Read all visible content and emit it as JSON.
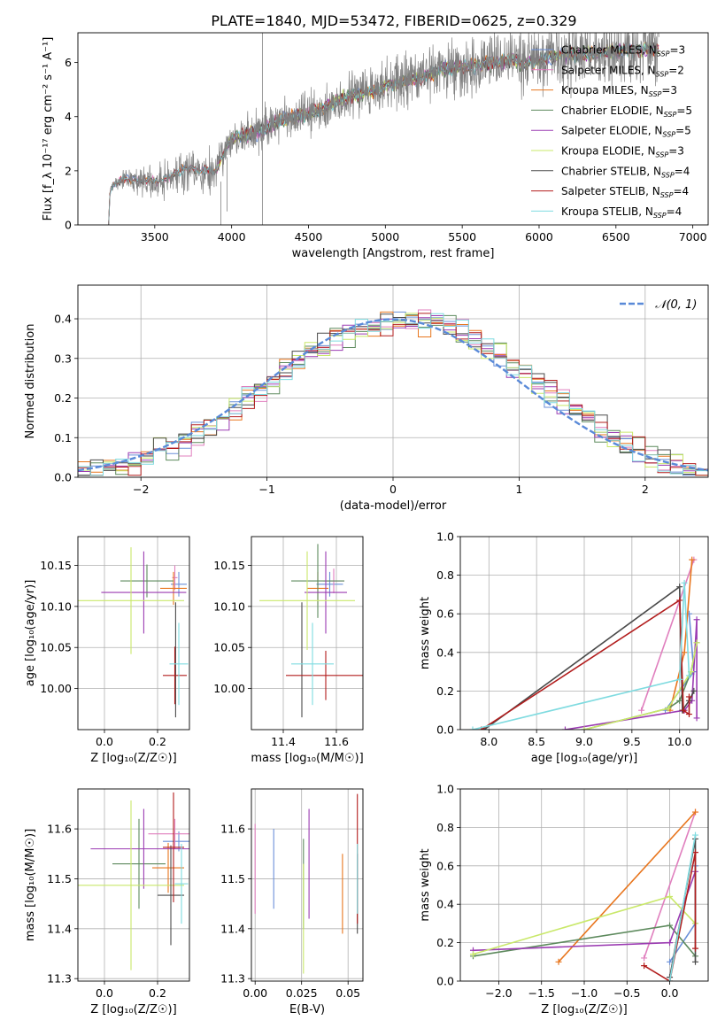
{
  "title": "PLATE=1840, MJD=53472, FIBERID=0625, z=0.329",
  "colors": {
    "Chabrier MILES": "#6a8fd8",
    "Salpeter MILES": "#e07fbe",
    "Kroupa MILES": "#e8761e",
    "Chabrier ELODIE": "#5d8a5d",
    "Salpeter ELODIE": "#9b3bb2",
    "Kroupa ELODIE": "#c9e86a",
    "Chabrier STELIB": "#4a4a4a",
    "Salpeter STELIB": "#b21d1d",
    "Kroupa STELIB": "#7fdbe0",
    "data": "#808080",
    "normal": "#5a8ad8"
  },
  "chart_data": [
    {
      "id": "spectrum",
      "type": "line",
      "xlabel": "wavelength [Angstrom, rest frame]",
      "ylabel": "Flux [f_λ 10⁻¹⁷ erg cm⁻² s⁻¹ A⁻¹]",
      "xlim": [
        3000,
        7100
      ],
      "ylim": [
        0,
        7.1
      ],
      "xticks": [
        3500,
        4000,
        4500,
        5000,
        5500,
        6000,
        6500,
        7000
      ],
      "yticks": [
        0,
        2,
        4,
        6
      ],
      "legend_position": "right",
      "legend": [
        {
          "base": "Chabrier MILES, N",
          "sub": "SSP",
          "tail": "=3"
        },
        {
          "base": "Salpeter MILES, N",
          "sub": "SSP",
          "tail": "=2"
        },
        {
          "base": "Kroupa MILES, N",
          "sub": "SSP",
          "tail": "=3"
        },
        {
          "base": "Chabrier ELODIE, N",
          "sub": "SSP",
          "tail": "=5"
        },
        {
          "base": "Salpeter ELODIE, N",
          "sub": "SSP",
          "tail": "=5"
        },
        {
          "base": "Kroupa ELODIE, N",
          "sub": "SSP",
          "tail": "=3"
        },
        {
          "base": "Chabrier STELIB, N",
          "sub": "SSP",
          "tail": "=4"
        },
        {
          "base": "Salpeter STELIB, N",
          "sub": "SSP",
          "tail": "=4"
        },
        {
          "base": "Kroupa STELIB, N",
          "sub": "SSP",
          "tail": "=4"
        }
      ],
      "continuum": [
        [
          3200,
          0
        ],
        [
          3210,
          1.4
        ],
        [
          3300,
          1.7
        ],
        [
          3400,
          1.65
        ],
        [
          3500,
          1.6
        ],
        [
          3600,
          1.8
        ],
        [
          3700,
          2.1
        ],
        [
          3800,
          2.0
        ],
        [
          3900,
          2.0
        ],
        [
          3950,
          2.7
        ],
        [
          4000,
          3.2
        ],
        [
          4100,
          3.3
        ],
        [
          4200,
          3.5
        ],
        [
          4300,
          3.8
        ],
        [
          4400,
          4.0
        ],
        [
          4500,
          4.1
        ],
        [
          4600,
          4.3
        ],
        [
          4700,
          4.6
        ],
        [
          4800,
          4.8
        ],
        [
          4900,
          4.9
        ],
        [
          5000,
          5.1
        ],
        [
          5100,
          5.3
        ],
        [
          5200,
          5.4
        ],
        [
          5300,
          5.6
        ],
        [
          5400,
          5.8
        ],
        [
          5500,
          5.8
        ],
        [
          5600,
          5.9
        ],
        [
          5700,
          6.0
        ],
        [
          5800,
          6.1
        ],
        [
          5900,
          6.0
        ],
        [
          6000,
          6.1
        ],
        [
          6100,
          6.2
        ],
        [
          6200,
          6.3
        ],
        [
          6300,
          6.3
        ],
        [
          6400,
          6.4
        ],
        [
          6500,
          6.4
        ],
        [
          6600,
          6.5
        ],
        [
          6700,
          6.5
        ],
        [
          6780,
          6.5
        ]
      ],
      "noise_scale": [
        [
          3200,
          0.2
        ],
        [
          3500,
          0.9
        ],
        [
          3700,
          1.0
        ],
        [
          4000,
          0.9
        ],
        [
          4500,
          1.0
        ],
        [
          5000,
          1.2
        ],
        [
          5500,
          1.4
        ],
        [
          6000,
          1.5
        ],
        [
          6500,
          1.6
        ],
        [
          6780,
          1.6
        ]
      ],
      "model_ranges": {
        "Chabrier MILES": [
          3200,
          6780
        ],
        "Salpeter MILES": [
          3200,
          6780
        ],
        "Kroupa MILES": [
          3200,
          6780
        ],
        "Chabrier ELODIE": [
          3900,
          6780
        ],
        "Salpeter ELODIE": [
          3900,
          6780
        ],
        "Kroupa ELODIE": [
          3900,
          6780
        ],
        "Chabrier STELIB": [
          3200,
          6780
        ],
        "Salpeter STELIB": [
          3200,
          6780
        ],
        "Kroupa STELIB": [
          3200,
          6780
        ]
      },
      "data_spikes": [
        [
          4200,
          0,
          7.1
        ],
        [
          3930,
          0,
          1.6
        ],
        [
          3970,
          0.5,
          2.5
        ]
      ]
    },
    {
      "id": "residual-histogram",
      "type": "histogram",
      "xlabel": "(data-model)/error",
      "ylabel": "Normed distribution",
      "xlim": [
        -2.5,
        2.5
      ],
      "ylim": [
        0,
        0.485
      ],
      "xticks": [
        -2,
        -1,
        0,
        1,
        2
      ],
      "yticks": [
        0.0,
        0.1,
        0.2,
        0.3,
        0.4
      ],
      "bin_width": 0.1,
      "legend_label": "𝒩(0, 1)",
      "legend_position": "top-right",
      "normal": {
        "mu": 0,
        "sigma": 1
      }
    },
    {
      "id": "age-vs-Z",
      "type": "errorbar",
      "xlabel": "Z [log₁₀(Z/Z☉)]",
      "ylabel": "age  [log₁₀(age/yr)]",
      "xlim": [
        -0.1,
        0.32
      ],
      "ylim": [
        9.95,
        10.185
      ],
      "xticks": [
        0.0,
        0.2
      ],
      "yticks": [
        10.0,
        10.05,
        10.1,
        10.15
      ],
      "points": [
        {
          "model": "Chabrier MILES",
          "x": 0.28,
          "xerr": 0.03,
          "y": 10.127,
          "yerr": 0.015
        },
        {
          "model": "Salpeter MILES",
          "x": 0.265,
          "xerr": 0.01,
          "y": 10.135,
          "yerr": 0.015
        },
        {
          "model": "Kroupa MILES",
          "x": 0.26,
          "xerr": 0.05,
          "y": 10.122,
          "yerr": 0.02
        },
        {
          "model": "Chabrier ELODIE",
          "x": 0.16,
          "xerr": 0.1,
          "y": 10.131,
          "yerr": 0.02
        },
        {
          "model": "Salpeter ELODIE",
          "x": 0.148,
          "xerr": 0.16,
          "y": 10.117,
          "yerr": 0.05
        },
        {
          "model": "Kroupa ELODIE",
          "x": 0.1,
          "xerr": 0.2,
          "y": 10.107,
          "yerr": 0.065
        },
        {
          "model": "Chabrier STELIB",
          "x": 0.268,
          "xerr": 0.0,
          "y": 10.035,
          "yerr": 0.07
        },
        {
          "model": "Salpeter STELIB",
          "x": 0.265,
          "xerr": 0.045,
          "y": 10.016,
          "yerr": 0.035
        },
        {
          "model": "Kroupa STELIB",
          "x": 0.28,
          "xerr": 0.035,
          "y": 10.03,
          "yerr": 0.05
        }
      ]
    },
    {
      "id": "age-vs-mass",
      "type": "errorbar",
      "xlabel": "mass [log₁₀(M/M☉)]",
      "ylabel": "",
      "xlim": [
        11.28,
        11.7
      ],
      "ylim": [
        9.95,
        10.185
      ],
      "xticks": [
        11.4,
        11.6
      ],
      "yticks": [
        10.0,
        10.05,
        10.1,
        10.15
      ],
      "points": [
        {
          "model": "Chabrier MILES",
          "x": 11.575,
          "xerr": 0.05,
          "y": 10.127,
          "yerr": 0.015
        },
        {
          "model": "Salpeter MILES",
          "x": 11.59,
          "xerr": 0.04,
          "y": 10.131,
          "yerr": 0.015
        },
        {
          "model": "Kroupa MILES",
          "x": 11.53,
          "xerr": 0.04,
          "y": 10.122,
          "yerr": 0.02
        },
        {
          "model": "Chabrier ELODIE",
          "x": 11.53,
          "xerr": 0.1,
          "y": 10.131,
          "yerr": 0.045
        },
        {
          "model": "Salpeter ELODIE",
          "x": 11.56,
          "xerr": 0.08,
          "y": 10.117,
          "yerr": 0.05
        },
        {
          "model": "Kroupa ELODIE",
          "x": 11.49,
          "xerr": 0.18,
          "y": 10.107,
          "yerr": 0.06
        },
        {
          "model": "Chabrier STELIB",
          "x": 11.47,
          "xerr": 0.0,
          "y": 10.035,
          "yerr": 0.07
        },
        {
          "model": "Salpeter STELIB",
          "x": 11.56,
          "xerr": 0.15,
          "y": 10.016,
          "yerr": 0.03
        },
        {
          "model": "Kroupa STELIB",
          "x": 11.51,
          "xerr": 0.08,
          "y": 10.03,
          "yerr": 0.05
        }
      ]
    },
    {
      "id": "mass-weight-vs-age",
      "type": "line",
      "xlabel": "age  [log₁₀(age/yr)]",
      "ylabel": "mass weight",
      "xlim": [
        7.7,
        10.3
      ],
      "ylim": [
        0,
        1.0
      ],
      "xticks": [
        8.0,
        8.5,
        9.0,
        9.5,
        10.0
      ],
      "yticks": [
        0.0,
        0.2,
        0.4,
        0.6,
        0.8,
        1.0
      ],
      "series": [
        {
          "model": "Chabrier MILES",
          "points": [
            [
              9.85,
              0.1
            ],
            [
              10.15,
              0.3
            ],
            [
              10.1,
              0.6
            ]
          ]
        },
        {
          "model": "Salpeter MILES",
          "points": [
            [
              9.6,
              0.1
            ],
            [
              10.15,
              0.88
            ]
          ]
        },
        {
          "model": "Kroupa MILES",
          "points": [
            [
              9.9,
              0.1
            ],
            [
              10.05,
              0.4
            ],
            [
              10.13,
              0.88
            ]
          ]
        },
        {
          "model": "Chabrier ELODIE",
          "points": [
            [
              9.0,
              0.0
            ],
            [
              9.88,
              0.11
            ],
            [
              10.0,
              0.15
            ],
            [
              10.12,
              0.3
            ],
            [
              10.18,
              0.45
            ]
          ]
        },
        {
          "model": "Salpeter ELODIE",
          "points": [
            [
              8.8,
              0.0
            ],
            [
              10.05,
              0.1
            ],
            [
              10.13,
              0.15
            ],
            [
              10.18,
              0.57
            ],
            [
              10.18,
              0.06
            ]
          ]
        },
        {
          "model": "Kroupa ELODIE",
          "points": [
            [
              9.0,
              0.0
            ],
            [
              9.88,
              0.11
            ],
            [
              10.12,
              0.3
            ],
            [
              10.18,
              0.45
            ]
          ]
        },
        {
          "model": "Chabrier STELIB",
          "points": [
            [
              7.95,
              0.0
            ],
            [
              10.0,
              0.74
            ],
            [
              10.03,
              0.1
            ],
            [
              10.1,
              0.15
            ],
            [
              10.15,
              0.2
            ]
          ]
        },
        {
          "model": "Salpeter STELIB",
          "points": [
            [
              7.92,
              0.0
            ],
            [
              10.0,
              0.67
            ],
            [
              10.04,
              0.1
            ],
            [
              10.1,
              0.08
            ],
            [
              10.1,
              0.17
            ]
          ]
        },
        {
          "model": "Kroupa STELIB",
          "points": [
            [
              7.83,
              0.0
            ],
            [
              10.0,
              0.26
            ],
            [
              10.05,
              0.76
            ],
            [
              10.1,
              0.28
            ]
          ]
        }
      ]
    },
    {
      "id": "mass-vs-Z",
      "type": "errorbar",
      "xlabel": "Z [log₁₀(Z/Z☉)]",
      "ylabel": "mass [log₁₀(M/M☉)]",
      "xlim": [
        -0.1,
        0.32
      ],
      "ylim": [
        11.295,
        11.68
      ],
      "xticks": [
        0.0,
        0.2
      ],
      "yticks": [
        11.3,
        11.4,
        11.5,
        11.6
      ],
      "points": [
        {
          "model": "Chabrier MILES",
          "x": 0.28,
          "xerr": 0.06,
          "y": 11.575,
          "yerr": 0.02
        },
        {
          "model": "Salpeter MILES",
          "x": 0.265,
          "xerr": 0.1,
          "y": 11.59,
          "yerr": 0.03
        },
        {
          "model": "Kroupa MILES",
          "x": 0.24,
          "xerr": 0.06,
          "y": 11.522,
          "yerr": 0.05
        },
        {
          "model": "Chabrier ELODIE",
          "x": 0.13,
          "xerr": 0.1,
          "y": 11.53,
          "yerr": 0.09
        },
        {
          "model": "Salpeter ELODIE",
          "x": 0.148,
          "xerr": 0.2,
          "y": 11.56,
          "yerr": 0.08
        },
        {
          "model": "Kroupa ELODIE",
          "x": 0.1,
          "xerr": 0.2,
          "y": 11.487,
          "yerr": 0.17
        },
        {
          "model": "Chabrier STELIB",
          "x": 0.25,
          "xerr": 0.05,
          "y": 11.467,
          "yerr": 0.1
        },
        {
          "model": "Salpeter STELIB",
          "x": 0.26,
          "xerr": 0.04,
          "y": 11.563,
          "yerr": 0.11
        },
        {
          "model": "Kroupa STELIB",
          "x": 0.29,
          "xerr": 0.025,
          "y": 11.49,
          "yerr": 0.08
        }
      ]
    },
    {
      "id": "mass-vs-ebv",
      "type": "errorbar",
      "xlabel": "E(B-V)",
      "ylabel": "",
      "xlim": [
        -0.002,
        0.058
      ],
      "ylim": [
        11.295,
        11.68
      ],
      "xticks": [
        0.0,
        0.025,
        0.05
      ],
      "yticks": [
        11.3,
        11.4,
        11.5,
        11.6
      ],
      "points": [
        {
          "model": "Chabrier MILES",
          "x": 0.01,
          "xerr": 0.0,
          "y": 11.52,
          "yerr": 0.08
        },
        {
          "model": "Salpeter MILES",
          "x": 0.0,
          "xerr": 0.0,
          "y": 11.52,
          "yerr": 0.09
        },
        {
          "model": "Kroupa MILES",
          "x": 0.047,
          "xerr": 0.0,
          "y": 11.47,
          "yerr": 0.08
        },
        {
          "model": "Chabrier ELODIE",
          "x": 0.026,
          "xerr": 0.0,
          "y": 11.49,
          "yerr": 0.09
        },
        {
          "model": "Salpeter ELODIE",
          "x": 0.029,
          "xerr": 0.0,
          "y": 11.53,
          "yerr": 0.11
        },
        {
          "model": "Kroupa ELODIE",
          "x": 0.026,
          "xerr": 0.0,
          "y": 11.42,
          "yerr": 0.11
        },
        {
          "model": "Chabrier STELIB",
          "x": 0.055,
          "xerr": 0.0,
          "y": 11.47,
          "yerr": 0.08
        },
        {
          "model": "Salpeter STELIB",
          "x": 0.055,
          "xerr": 0.0,
          "y": 11.54,
          "yerr": 0.13
        },
        {
          "model": "Kroupa STELIB",
          "x": 0.055,
          "xerr": 0.0,
          "y": 11.5,
          "yerr": 0.07
        }
      ]
    },
    {
      "id": "mass-weight-vs-Z",
      "type": "line",
      "xlabel": "Z [log₁₀(Z/Z☉)]",
      "ylabel": "mass weight",
      "xlim": [
        -2.45,
        0.45
      ],
      "ylim": [
        0,
        1.0
      ],
      "xticks": [
        -2.0,
        -1.5,
        -1.0,
        -0.5,
        0.0
      ],
      "yticks": [
        0.0,
        0.2,
        0.4,
        0.6,
        0.8,
        1.0
      ],
      "series": [
        {
          "model": "Chabrier MILES",
          "points": [
            [
              0.0,
              0.1
            ],
            [
              0.3,
              0.3
            ],
            [
              0.3,
              0.6
            ]
          ]
        },
        {
          "model": "Salpeter MILES",
          "points": [
            [
              -0.3,
              0.12
            ],
            [
              0.3,
              0.88
            ]
          ]
        },
        {
          "model": "Kroupa MILES",
          "points": [
            [
              -1.3,
              0.1
            ],
            [
              0.3,
              0.88
            ]
          ]
        },
        {
          "model": "Chabrier ELODIE",
          "points": [
            [
              -2.3,
              0.13
            ],
            [
              0.0,
              0.29
            ],
            [
              0.3,
              0.13
            ]
          ]
        },
        {
          "model": "Salpeter ELODIE",
          "points": [
            [
              -2.3,
              0.16
            ],
            [
              0.0,
              0.2
            ],
            [
              0.3,
              0.57
            ]
          ]
        },
        {
          "model": "Kroupa ELODIE",
          "points": [
            [
              -2.3,
              0.14
            ],
            [
              0.0,
              0.44
            ],
            [
              0.3,
              0.3
            ]
          ]
        },
        {
          "model": "Chabrier STELIB",
          "points": [
            [
              0.0,
              0.02
            ],
            [
              0.3,
              0.74
            ],
            [
              0.3,
              0.1
            ]
          ]
        },
        {
          "model": "Salpeter STELIB",
          "points": [
            [
              -0.3,
              0.08
            ],
            [
              0.0,
              0.0
            ],
            [
              0.3,
              0.67
            ],
            [
              0.3,
              0.17
            ]
          ]
        },
        {
          "model": "Kroupa STELIB",
          "points": [
            [
              0.0,
              0.0
            ],
            [
              0.3,
              0.76
            ]
          ]
        }
      ]
    }
  ]
}
